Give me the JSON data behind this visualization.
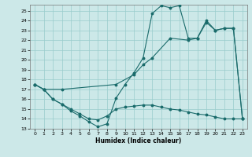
{
  "xlabel": "Humidex (Indice chaleur)",
  "bg_color": "#cce8e8",
  "line_color": "#1a6b6b",
  "grid_color": "#99cccc",
  "xlim": [
    -0.5,
    23.5
  ],
  "ylim": [
    13,
    25.6
  ],
  "yticks": [
    13,
    14,
    15,
    16,
    17,
    18,
    19,
    20,
    21,
    22,
    23,
    24,
    25
  ],
  "xticks": [
    0,
    1,
    2,
    3,
    4,
    5,
    6,
    7,
    8,
    9,
    10,
    11,
    12,
    13,
    14,
    15,
    16,
    17,
    18,
    19,
    20,
    21,
    22,
    23
  ],
  "line1_x": [
    0,
    1,
    2,
    3,
    4,
    5,
    6,
    7,
    8,
    9,
    10,
    11,
    12,
    13,
    14,
    15,
    16,
    17,
    18,
    19,
    20,
    21,
    22,
    23
  ],
  "line1_y": [
    17.5,
    17.0,
    16.0,
    15.5,
    14.8,
    14.3,
    13.7,
    13.2,
    13.5,
    16.1,
    17.5,
    18.7,
    20.2,
    24.7,
    25.5,
    25.3,
    25.5,
    22.2,
    22.2,
    24.0,
    23.0,
    23.2,
    23.2,
    14.0
  ],
  "line2_x": [
    0,
    1,
    2,
    3,
    4,
    5,
    6,
    7,
    8,
    9,
    10,
    11,
    12,
    13,
    14,
    15,
    16,
    17,
    18,
    19,
    20,
    21,
    22,
    23
  ],
  "line2_y": [
    17.5,
    17.0,
    16.0,
    15.5,
    15.0,
    14.5,
    14.0,
    13.9,
    14.3,
    15.0,
    15.2,
    15.3,
    15.4,
    15.4,
    15.2,
    15.0,
    14.9,
    14.7,
    14.5,
    14.4,
    14.2,
    14.0,
    14.0,
    14.0
  ],
  "line3_x": [
    0,
    1,
    3,
    9,
    11,
    12,
    13,
    15,
    17,
    18,
    19,
    20,
    21,
    22,
    23
  ],
  "line3_y": [
    17.5,
    17.0,
    17.0,
    17.5,
    18.5,
    19.5,
    20.2,
    22.2,
    22.0,
    22.2,
    23.8,
    23.0,
    23.2,
    23.2,
    14.0
  ]
}
